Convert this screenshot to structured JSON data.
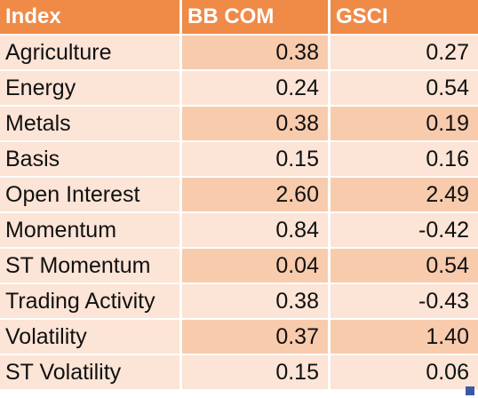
{
  "table": {
    "headers": [
      "Index",
      "BB COM",
      "GSCI"
    ],
    "rows": [
      {
        "index": "Agriculture",
        "bbcom": "0.38",
        "gsci": "0.27"
      },
      {
        "index": "Energy",
        "bbcom": "0.24",
        "gsci": "0.54"
      },
      {
        "index": "Metals",
        "bbcom": "0.38",
        "gsci": "0.19"
      },
      {
        "index": "Basis",
        "bbcom": "0.15",
        "gsci": "0.16"
      },
      {
        "index": "Open Interest",
        "bbcom": "2.60",
        "gsci": "2.49"
      },
      {
        "index": "Momentum",
        "bbcom": "0.84",
        "gsci": "-0.42"
      },
      {
        "index": "ST Momentum",
        "bbcom": "0.04",
        "gsci": "0.54"
      },
      {
        "index": "Trading Activity",
        "bbcom": "0.38",
        "gsci": "-0.43"
      },
      {
        "index": "Volatility",
        "bbcom": "0.37",
        "gsci": "1.40"
      },
      {
        "index": "ST Volatility",
        "bbcom": "0.15",
        "gsci": "0.06"
      }
    ]
  },
  "colors": {
    "header": "#ef8a47",
    "row_light": "#fce4d6",
    "row_dark": "#f8cbad",
    "selection_handle": "#3b5aa5"
  }
}
